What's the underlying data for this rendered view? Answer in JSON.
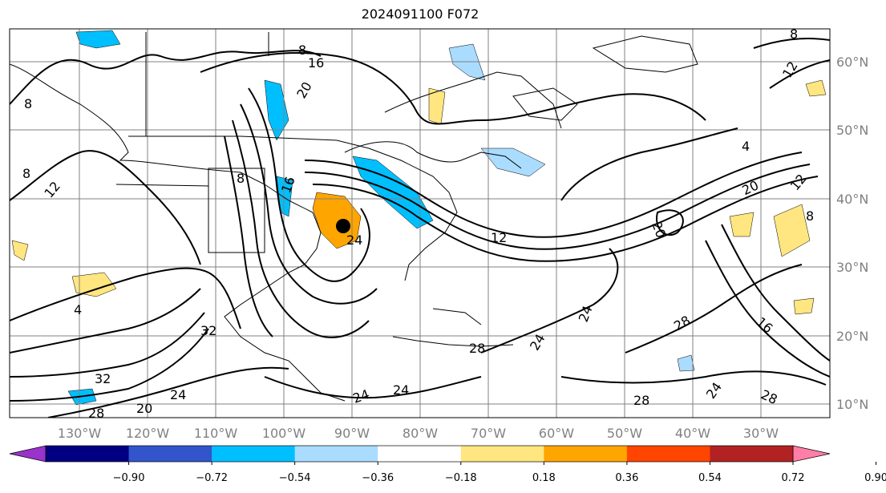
{
  "title": "2024091100 F072",
  "lon_labels": [
    "130°W",
    "120°W",
    "110°W",
    "100°W",
    "90°W",
    "80°W",
    "70°W",
    "60°W",
    "50°W",
    "40°W",
    "30°W"
  ],
  "lat_labels": [
    "60°N",
    "50°N",
    "40°N",
    "30°N",
    "20°N",
    "10°N"
  ],
  "colorbar": {
    "ticks": [
      "−0.90",
      "−0.72",
      "−0.54",
      "−0.36",
      "−0.18",
      "0.18",
      "0.36",
      "0.54",
      "0.72",
      "0.90"
    ],
    "colors": [
      "#9933cc",
      "#000080",
      "#3355cc",
      "#00bfff",
      "#aadcff",
      "#ffffff",
      "#ffe680",
      "#ffa500",
      "#ff4500",
      "#b22222",
      "#ff7fa8"
    ]
  },
  "contour_labels": [
    "8",
    "16",
    "20",
    "8",
    "12",
    "8",
    "8",
    "16",
    "24",
    "12",
    "4",
    "20",
    "12",
    "8",
    "20",
    "4",
    "32",
    "32",
    "24",
    "28",
    "20",
    "24",
    "24",
    "24",
    "24",
    "28",
    "28",
    "28",
    "24",
    "16",
    "8",
    "12",
    "28"
  ],
  "storm_marker": "storm-center"
}
